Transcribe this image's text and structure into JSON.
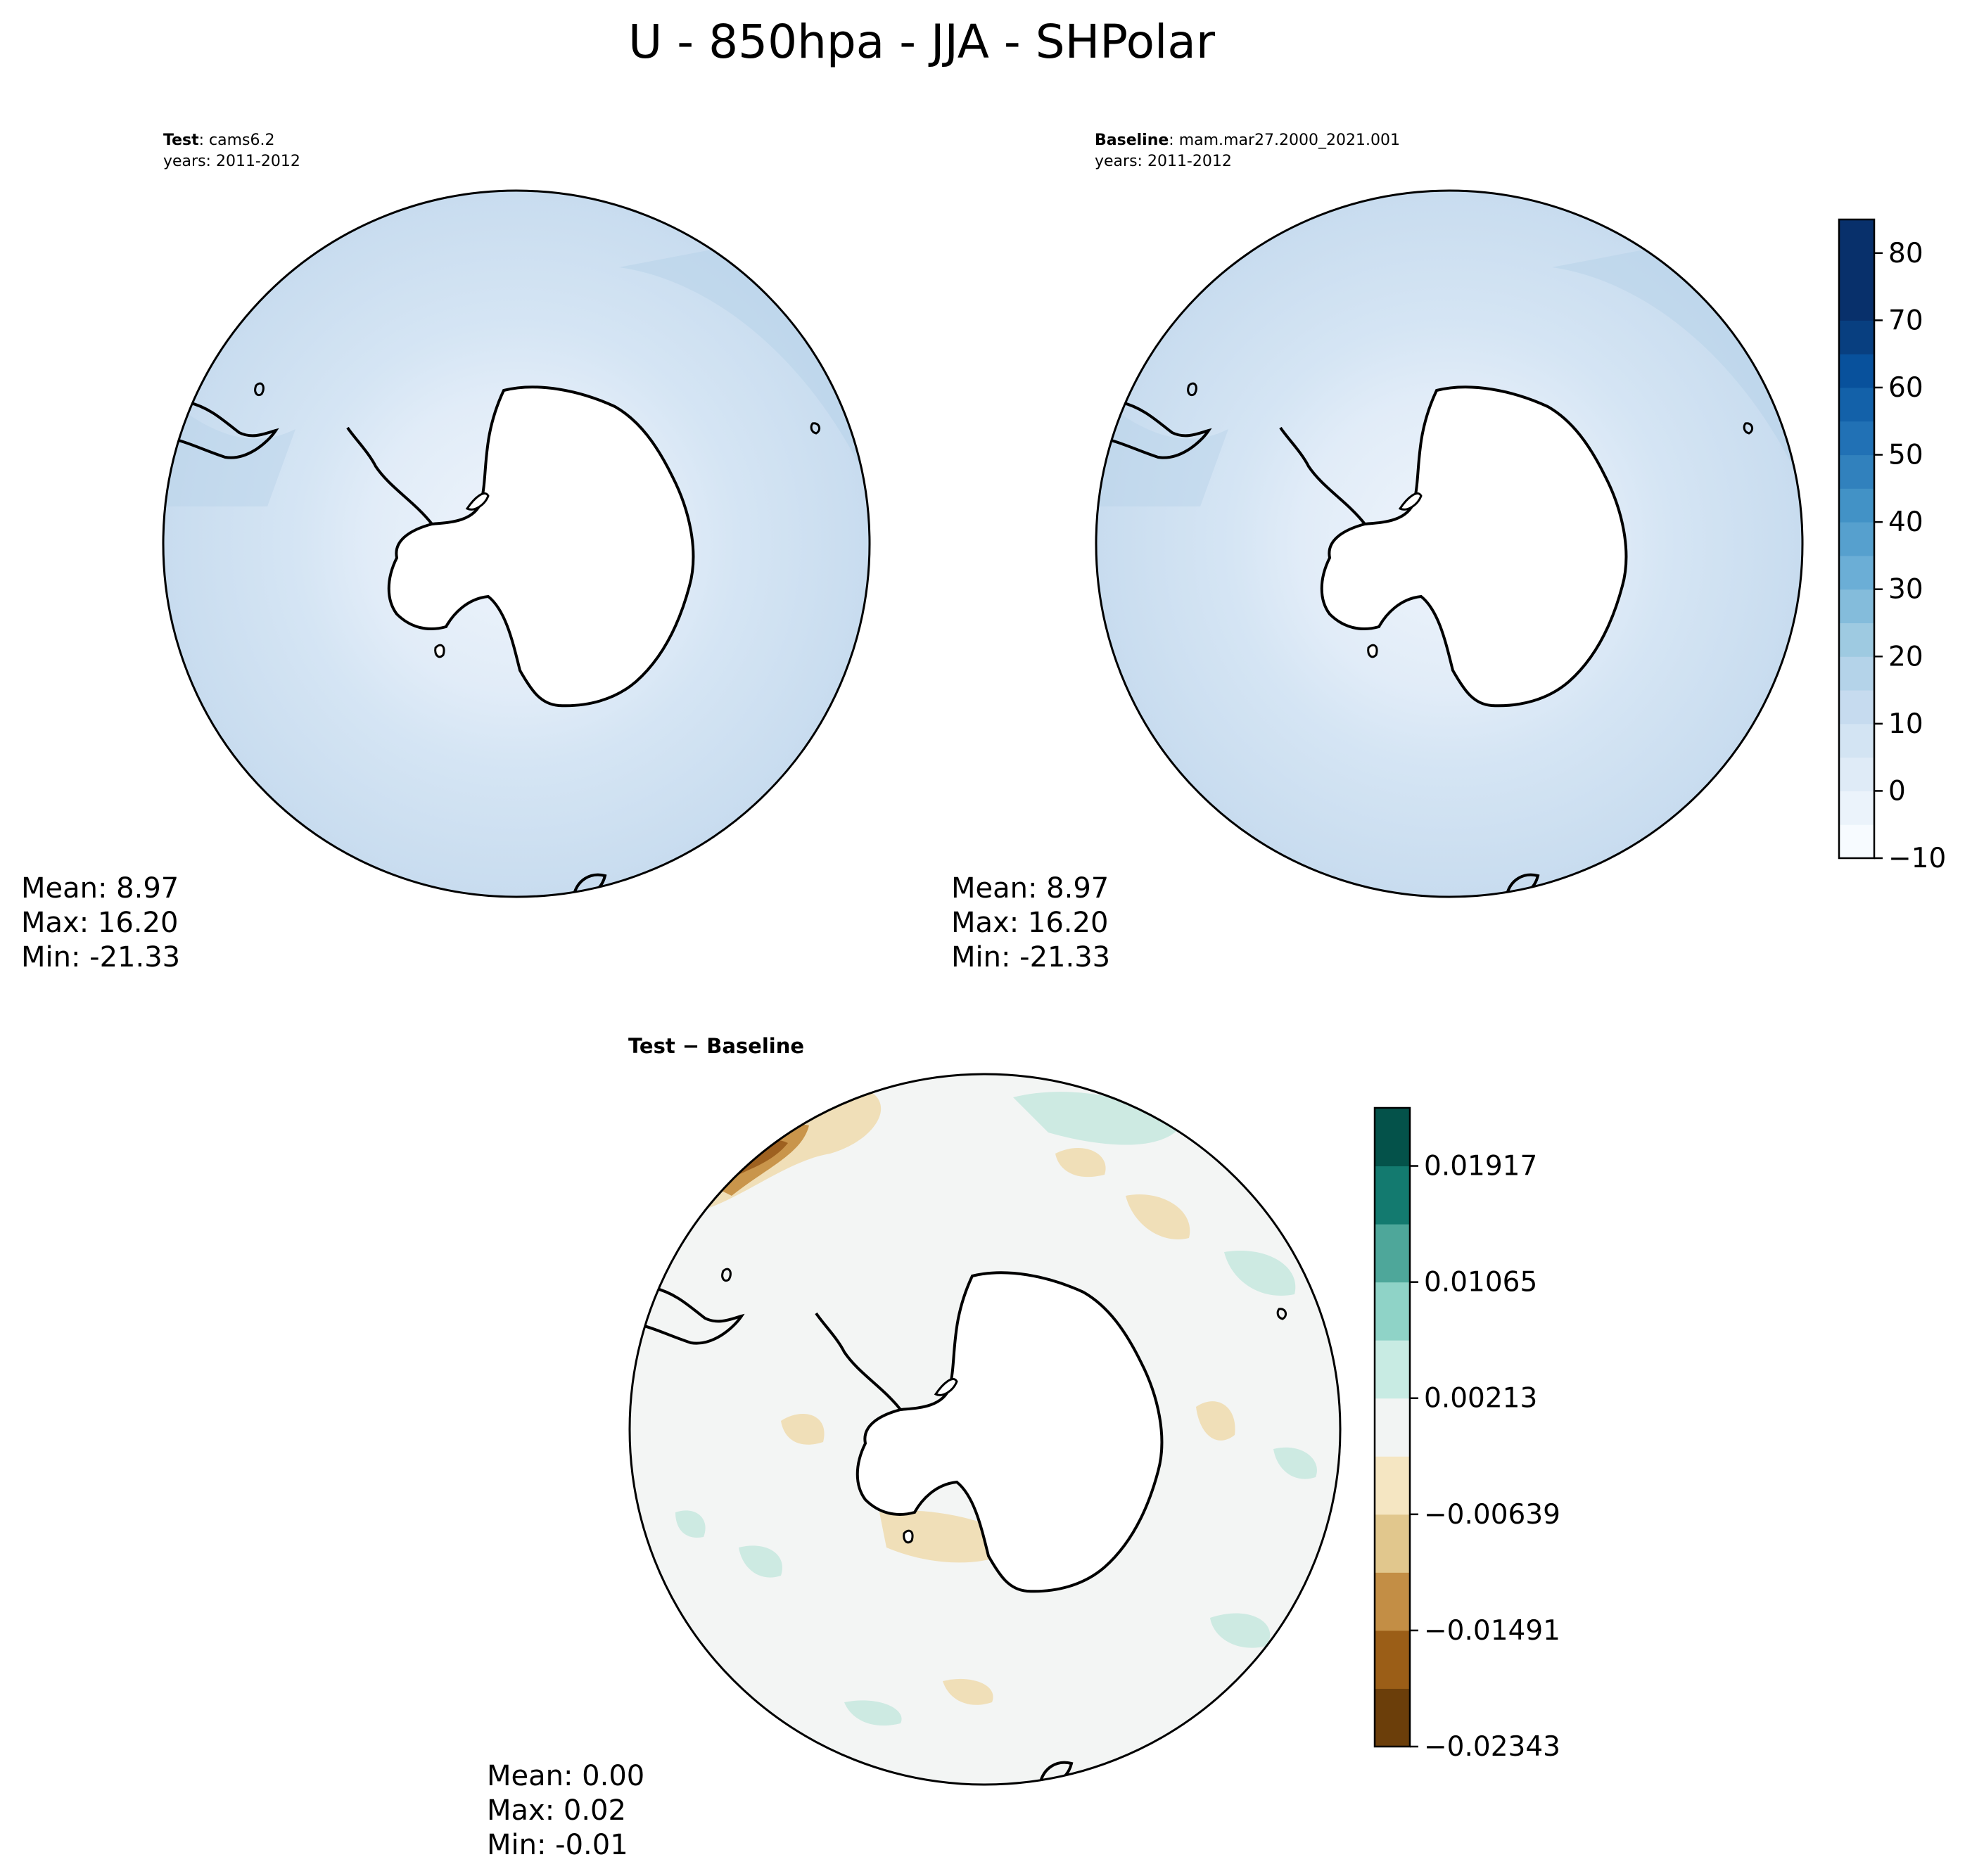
{
  "figure": {
    "suptitle": "U - 850hpa - JJA - SHPolar"
  },
  "panels": {
    "test": {
      "label_bold": "Test",
      "label_rest": ": cams6.2",
      "years": "years: 2011-2012",
      "stats": {
        "mean": "Mean:  8.97",
        "max": "Max: 16.20",
        "min": "Min: -21.33"
      }
    },
    "baseline": {
      "label_bold": "Baseline",
      "label_rest": ": mam.mar27.2000_2021.001",
      "years": "years: 2011-2012",
      "stats": {
        "mean": "Mean:  8.97",
        "max": "Max: 16.20",
        "min": "Min: -21.33"
      }
    },
    "diff": {
      "label": "Test − Baseline",
      "stats": {
        "mean": "Mean:  0.00",
        "max": "Max:  0.02",
        "min": "Min: -0.01"
      }
    }
  },
  "colors": {
    "ocean_light": "#c8dcef",
    "ocean_mid": "#d5e5f4",
    "ocean_inner": "#e1ecf8",
    "ocean_dark": "#b9d4ea",
    "diff_base": "#f3f5f4",
    "diff_brown": "#f0dfb8",
    "diff_brown_dark": "#c9954b",
    "diff_teal": "#cdeae2"
  },
  "chart_data": [
    {
      "type": "heatmap",
      "title": "Test : cams6.2",
      "projection": "south polar stereographic",
      "colorbar": {
        "ticks": [
          -10,
          0,
          10,
          20,
          30,
          40,
          50,
          60,
          70,
          80
        ],
        "tick_labels": [
          "−10",
          "0",
          "10",
          "20",
          "30",
          "40",
          "50",
          "60",
          "70",
          "80"
        ],
        "levels": [
          -10,
          -5,
          0,
          5,
          10,
          15,
          20,
          25,
          30,
          35,
          40,
          45,
          50,
          55,
          60,
          65,
          70,
          75,
          80,
          85
        ],
        "colors": [
          "#f7fbff",
          "#ebf3fb",
          "#dfebf7",
          "#d3e4f3",
          "#c6dbef",
          "#b4d3e9",
          "#9ecae1",
          "#84bcdb",
          "#6baed6",
          "#56a0ce",
          "#4292c6",
          "#3181bd",
          "#2171b5",
          "#1361a9",
          "#08519c",
          "#083f80",
          "#08306b",
          "#08306b",
          "#08306b"
        ],
        "colormap": "Blues"
      },
      "stats": {
        "mean": 8.97,
        "max": 16.2,
        "min": -21.33
      }
    },
    {
      "type": "heatmap",
      "title": "Baseline : mam.mar27.2000_2021.001",
      "projection": "south polar stereographic",
      "stats": {
        "mean": 8.97,
        "max": 16.2,
        "min": -21.33
      }
    },
    {
      "type": "heatmap",
      "title": "Test − Baseline",
      "projection": "south polar stereographic",
      "colorbar": {
        "ticks": [
          -0.02343,
          -0.01491,
          -0.00639,
          0.00213,
          0.01065,
          0.01917
        ],
        "tick_labels": [
          "−0.02343",
          "−0.01491",
          "−0.00639",
          "0.00213",
          "0.01065",
          "0.01917"
        ],
        "levels": [
          -0.02343,
          -0.01917,
          -0.01491,
          -0.01065,
          -0.00639,
          -0.00213,
          0.00213,
          0.00639,
          0.01065,
          0.01491,
          0.01917,
          0.02343
        ],
        "colors": [
          "#6b3e0a",
          "#9b5e17",
          "#c38e45",
          "#e1c78d",
          "#f5e6c2",
          "#f2f4f3",
          "#c8ebe3",
          "#8fd3c7",
          "#4ea79a",
          "#137a6f",
          "#04524a"
        ],
        "colormap": "BrBG"
      },
      "stats": {
        "mean": 0.0,
        "max": 0.02,
        "min": -0.01
      }
    }
  ]
}
